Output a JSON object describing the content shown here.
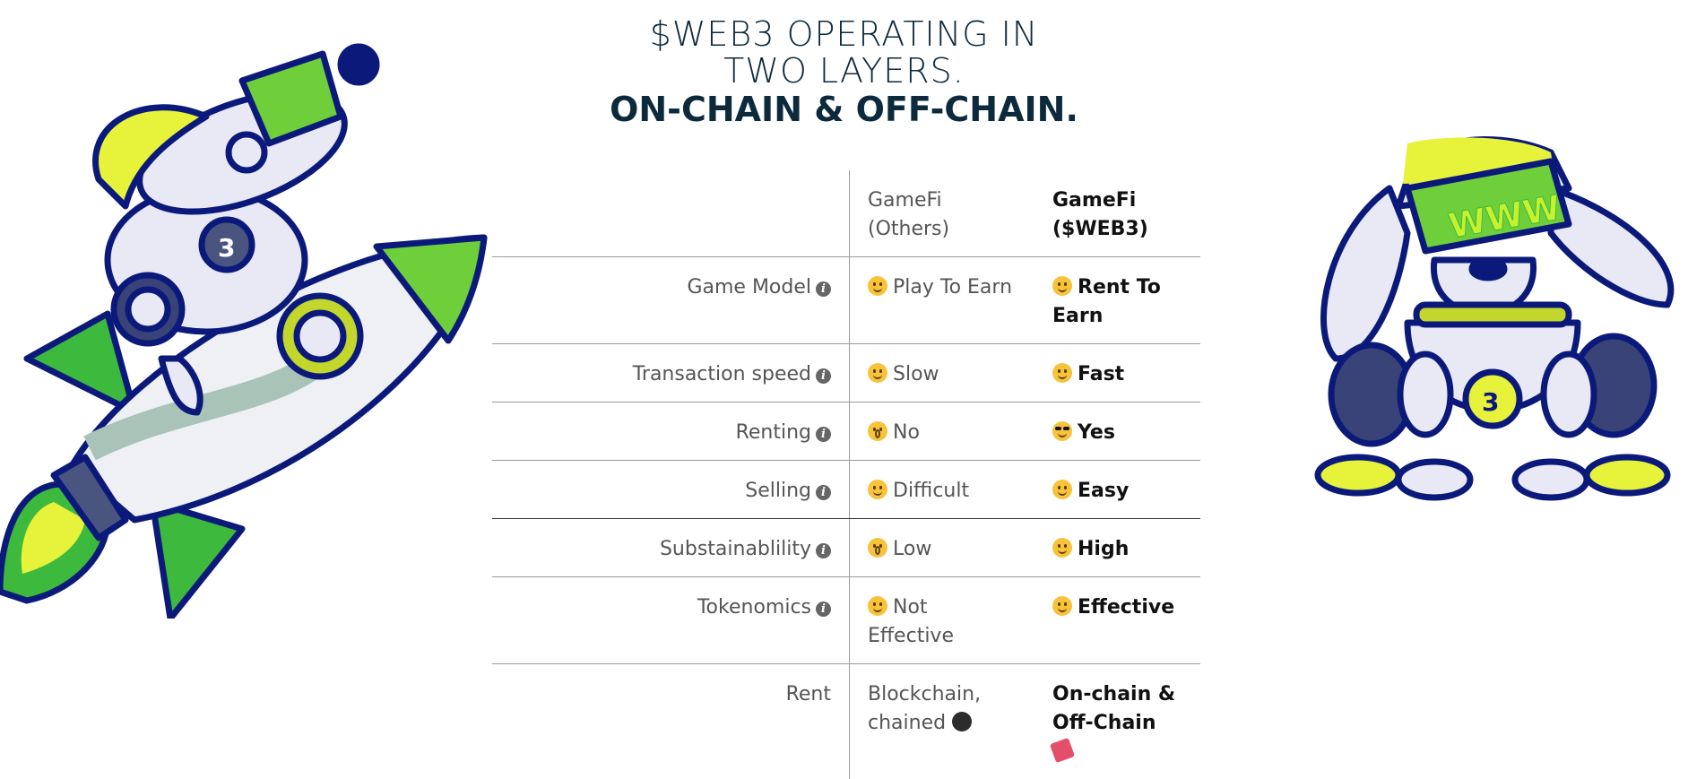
{
  "heading": {
    "line1": "$WEB3 OPERATING IN",
    "line2": "TWO LAYERS.",
    "line3": "ON-CHAIN & OFF-CHAIN."
  },
  "table": {
    "columns": [
      "GameFi (Others)",
      "GameFi\n($WEB3)"
    ],
    "rows": [
      {
        "label": "Game Model",
        "info": true,
        "others": "Play To Earn",
        "others_icon": "pensive-face-icon",
        "web3": "Rent To Earn",
        "web3_icon": "grinning-face-icon"
      },
      {
        "label": "Transaction speed",
        "info": true,
        "others": "Slow",
        "others_icon": "sleeping-face-icon",
        "web3": "Fast",
        "web3_icon": "winking-face-icon"
      },
      {
        "label": "Renting",
        "info": true,
        "others": "No",
        "others_icon": "astonished-face-icon",
        "web3": "Yes",
        "web3_icon": "sunglasses-face-icon"
      },
      {
        "label": "Selling",
        "info": true,
        "others": "Difficult",
        "others_icon": "tired-face-icon",
        "web3": "Easy",
        "web3_icon": "smiling-face-icon"
      },
      {
        "label": "Substainablility",
        "info": true,
        "others": "Low",
        "others_icon": "flushed-face-icon",
        "web3": "High",
        "web3_icon": "kissing-face-icon"
      },
      {
        "label": "Tokenomics",
        "info": true,
        "others": "Not Effective",
        "others_icon": "monocle-face-icon",
        "web3": "Effective",
        "web3_icon": "partying-face-icon"
      },
      {
        "label": "Rent",
        "info": false,
        "others": "Blockchain, chained",
        "others_icon": "bomb-icon",
        "web3": "On-chain & Off-Chain",
        "web3_icon": "party-popper-icon"
      }
    ]
  },
  "colors": {
    "navy": "#0b1a7a",
    "lime": "#c5f12e",
    "green": "#3dba3d",
    "heading": "#0d2a3d"
  }
}
